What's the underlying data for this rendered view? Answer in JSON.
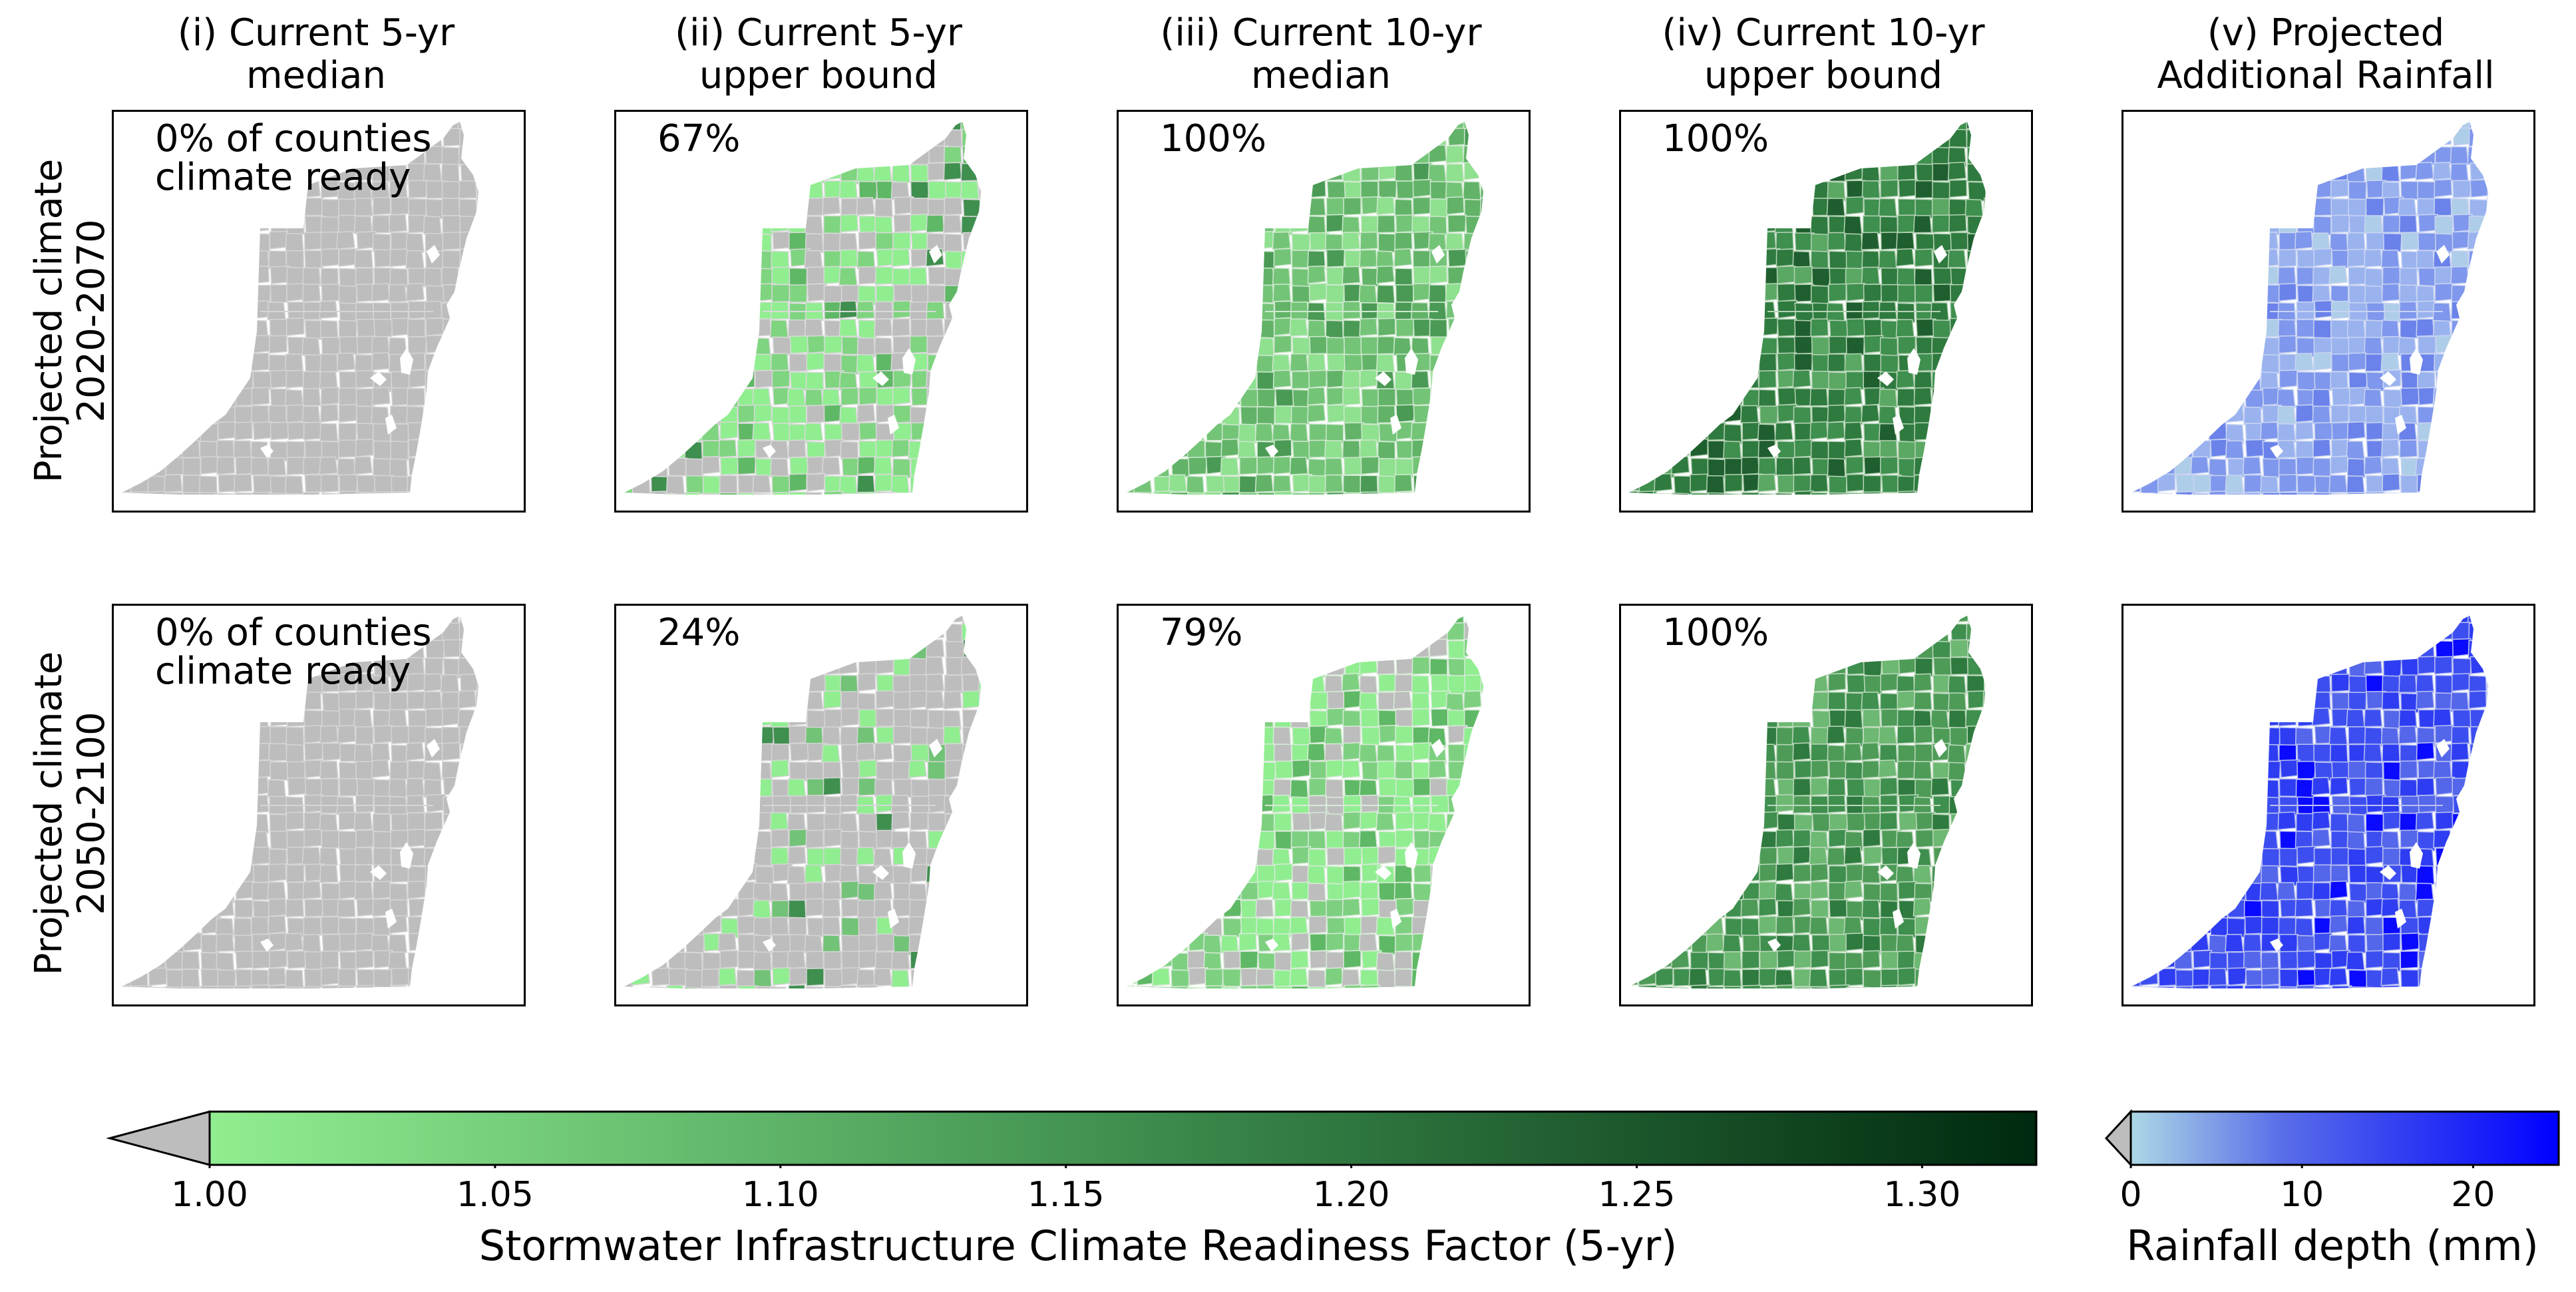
{
  "columns": [
    {
      "line1": "(i) Current 5-yr",
      "line2": "median"
    },
    {
      "line1": "(ii) Current 5-yr",
      "line2": "upper bound"
    },
    {
      "line1": "(iii) Current 10-yr",
      "line2": "median"
    },
    {
      "line1": "(iv) Current 10-yr",
      "line2": "upper bound"
    },
    {
      "line1": "(v) Projected",
      "line2": "Additional Rainfall"
    }
  ],
  "rows": [
    {
      "line1": "Projected climate",
      "line2": "2020-2070"
    },
    {
      "line1": "Projected climate",
      "line2": "2050-2100"
    }
  ],
  "panels": [
    [
      {
        "label": "0% of counties\nclimate ready",
        "fill": "gray"
      },
      {
        "label": "67%",
        "fill": "green-light"
      },
      {
        "label": "100%",
        "fill": "green-mid"
      },
      {
        "label": "100%",
        "fill": "green-dark"
      },
      {
        "label": "",
        "fill": "blue-light"
      }
    ],
    [
      {
        "label": "0% of counties\nclimate ready",
        "fill": "gray"
      },
      {
        "label": "24%",
        "fill": "green-sparse"
      },
      {
        "label": "79%",
        "fill": "green-partial"
      },
      {
        "label": "100%",
        "fill": "green-mid2"
      },
      {
        "label": "",
        "fill": "blue-dark"
      }
    ]
  ],
  "colorbar_green": {
    "label": "Stormwater Infrastructure Climate Readiness Factor (5-yr)",
    "ticks": [
      "1.00",
      "1.05",
      "1.10",
      "1.15",
      "1.20",
      "1.25",
      "1.30"
    ],
    "tick_values": [
      1.0,
      1.05,
      1.1,
      1.15,
      1.2,
      1.25,
      1.3
    ],
    "min": 1.0,
    "max": 1.32,
    "extend_color": "#bdbdbd",
    "color_low": "#90ee90",
    "color_high": "#002a0f"
  },
  "colorbar_blue": {
    "label": "Rainfall depth (mm)",
    "ticks": [
      "0",
      "10",
      "20"
    ],
    "tick_values": [
      0,
      10,
      20
    ],
    "min": 0,
    "max": 25,
    "extend_color": "#bdbdbd",
    "color_low": "#add8e6",
    "color_high": "#0000ff"
  }
}
